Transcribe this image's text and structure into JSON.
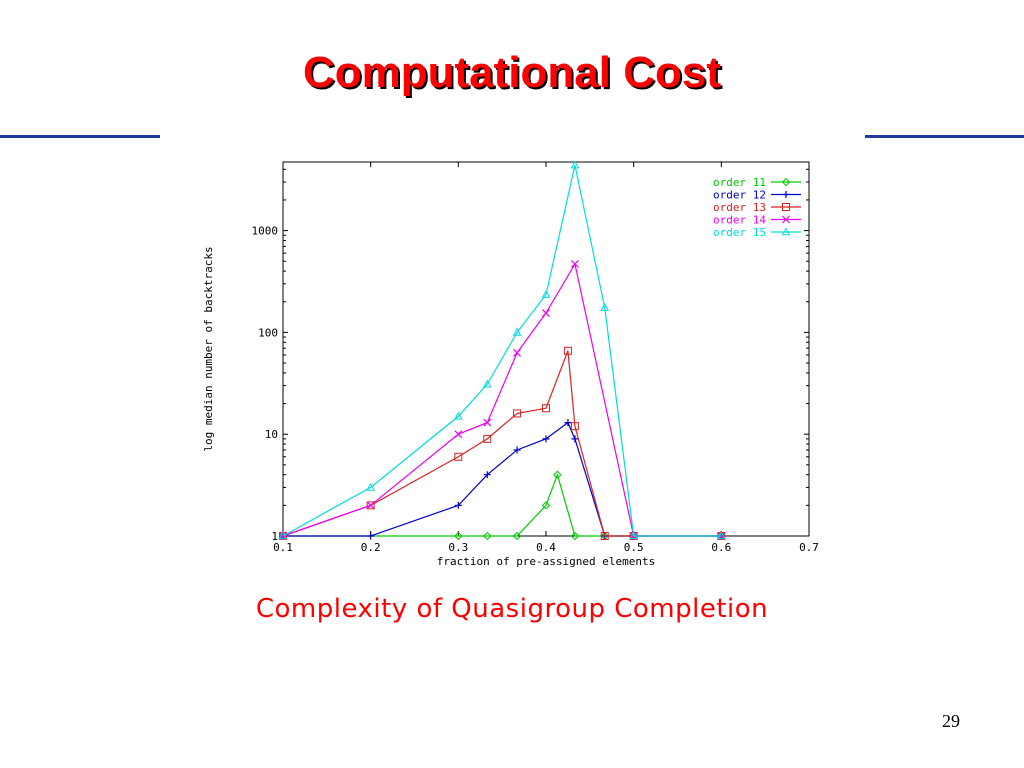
{
  "slide": {
    "title": "Computational Cost",
    "caption": "Complexity of Quasigroup Completion",
    "page_number": "29",
    "title_color": "#ff0000",
    "rule_color": "#1f3aa0"
  },
  "chart_data": {
    "type": "line",
    "title": "",
    "xlabel": "fraction of pre-assigned elements",
    "ylabel": "log median number of backtracks",
    "xlim": [
      0.1,
      0.7
    ],
    "ylim": [
      1,
      5000
    ],
    "y_scale": "log",
    "x_ticks": [
      "0.1",
      "0.2",
      "0.3",
      "0.4",
      "0.5",
      "0.6",
      "0.7"
    ],
    "y_ticks": [
      "1",
      "10",
      "100",
      "1000"
    ],
    "grid": false,
    "legend_position": "top-right",
    "series": [
      {
        "name": "order 11",
        "color": "#00cc00",
        "marker": "diamond",
        "points": [
          [
            0.1,
            1
          ],
          [
            0.3,
            1
          ],
          [
            0.333,
            1
          ],
          [
            0.367,
            1
          ],
          [
            0.4,
            2
          ],
          [
            0.413,
            4
          ],
          [
            0.433,
            1
          ],
          [
            0.467,
            1
          ],
          [
            0.5,
            1
          ],
          [
            0.6,
            1
          ]
        ]
      },
      {
        "name": "order 12",
        "color": "#0000cc",
        "marker": "plus",
        "points": [
          [
            0.1,
            1
          ],
          [
            0.2,
            1
          ],
          [
            0.3,
            2
          ],
          [
            0.333,
            4
          ],
          [
            0.367,
            7
          ],
          [
            0.4,
            9
          ],
          [
            0.425,
            13
          ],
          [
            0.433,
            9
          ],
          [
            0.467,
            1
          ],
          [
            0.5,
            1
          ],
          [
            0.6,
            1
          ]
        ]
      },
      {
        "name": "order 13",
        "color": "#dd2222",
        "marker": "square",
        "points": [
          [
            0.1,
            1
          ],
          [
            0.2,
            2
          ],
          [
            0.3,
            6
          ],
          [
            0.333,
            9
          ],
          [
            0.367,
            16
          ],
          [
            0.4,
            18
          ],
          [
            0.425,
            66
          ],
          [
            0.433,
            12
          ],
          [
            0.467,
            1
          ],
          [
            0.5,
            1
          ],
          [
            0.6,
            1
          ]
        ]
      },
      {
        "name": "order 14",
        "color": "#ee00ee",
        "marker": "x",
        "points": [
          [
            0.1,
            1
          ],
          [
            0.2,
            2
          ],
          [
            0.3,
            10
          ],
          [
            0.333,
            13
          ],
          [
            0.367,
            63
          ],
          [
            0.4,
            155
          ],
          [
            0.433,
            470
          ],
          [
            0.5,
            1
          ],
          [
            0.6,
            1
          ]
        ]
      },
      {
        "name": "order 15",
        "color": "#00dddd",
        "marker": "triangle",
        "points": [
          [
            0.1,
            1
          ],
          [
            0.2,
            3
          ],
          [
            0.3,
            15
          ],
          [
            0.333,
            31
          ],
          [
            0.367,
            100
          ],
          [
            0.4,
            235
          ],
          [
            0.433,
            4400
          ],
          [
            0.467,
            175
          ],
          [
            0.5,
            1
          ],
          [
            0.6,
            1
          ]
        ]
      }
    ]
  }
}
